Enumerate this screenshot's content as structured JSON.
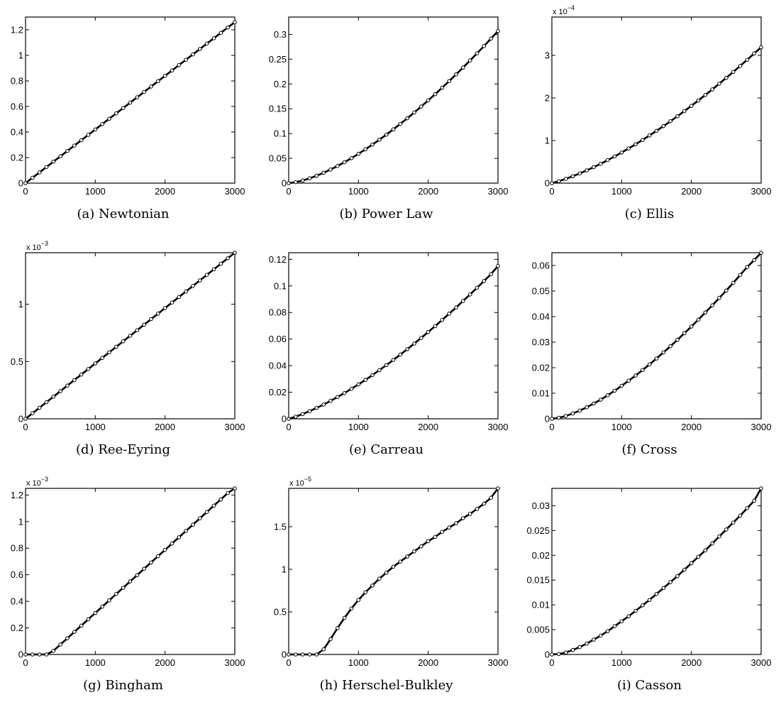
{
  "chart_data": [
    {
      "type": "line",
      "caption": "(a)  Newtonian",
      "xlim": [
        0,
        3000
      ],
      "ylim": [
        0,
        1.3
      ],
      "xticks": [
        0,
        1000,
        2000,
        3000
      ],
      "xtick_labels": [
        "0",
        "1000",
        "2000",
        "3000"
      ],
      "yticks": [
        0,
        0.2,
        0.4,
        0.6,
        0.8,
        1.0,
        1.2
      ],
      "ytick_labels": [
        "0",
        "0.2",
        "0.4",
        "0.6",
        "0.8",
        "1",
        "1.2"
      ],
      "y_multiplier": null,
      "series": [
        {
          "x": [
            0,
            100,
            200,
            300,
            400,
            500,
            600,
            700,
            800,
            900,
            1000,
            1100,
            1200,
            1300,
            1400,
            1500,
            1600,
            1700,
            1800,
            1900,
            2000,
            2100,
            2200,
            2300,
            2400,
            2500,
            2600,
            2700,
            2800,
            2900,
            3000
          ],
          "y": [
            0,
            0.042,
            0.084,
            0.126,
            0.168,
            0.21,
            0.252,
            0.294,
            0.336,
            0.378,
            0.42,
            0.462,
            0.504,
            0.546,
            0.588,
            0.63,
            0.672,
            0.714,
            0.756,
            0.798,
            0.84,
            0.882,
            0.924,
            0.966,
            1.008,
            1.05,
            1.092,
            1.134,
            1.176,
            1.218,
            1.26
          ]
        }
      ]
    },
    {
      "type": "line",
      "caption": "(b)  Power Law",
      "xlim": [
        0,
        3000
      ],
      "ylim": [
        0,
        0.335
      ],
      "xticks": [
        0,
        1000,
        2000,
        3000
      ],
      "xtick_labels": [
        "0",
        "1000",
        "2000",
        "3000"
      ],
      "yticks": [
        0,
        0.05,
        0.1,
        0.15,
        0.2,
        0.25,
        0.3
      ],
      "ytick_labels": [
        "0",
        "0.05",
        "0.1",
        "0.15",
        "0.2",
        "0.25",
        "0.3"
      ],
      "y_multiplier": null,
      "series": [
        {
          "x": [
            0,
            100,
            200,
            300,
            400,
            500,
            600,
            700,
            800,
            900,
            1000,
            1100,
            1200,
            1300,
            1400,
            1500,
            1600,
            1700,
            1800,
            1900,
            2000,
            2100,
            2200,
            2300,
            2400,
            2500,
            2600,
            2700,
            2800,
            2900,
            3000
          ],
          "y": [
            0,
            0.0019,
            0.0053,
            0.0097,
            0.0149,
            0.0209,
            0.0274,
            0.0346,
            0.0422,
            0.0504,
            0.0591,
            0.0682,
            0.0777,
            0.0876,
            0.0978,
            0.1085,
            0.1195,
            0.1308,
            0.1425,
            0.1546,
            0.1669,
            0.1795,
            0.1925,
            0.2058,
            0.2194,
            0.2332,
            0.2474,
            0.2618,
            0.2765,
            0.2915,
            0.3067
          ]
        }
      ]
    },
    {
      "type": "line",
      "caption": "(c)  Ellis",
      "xlim": [
        0,
        3000
      ],
      "ylim": [
        0,
        3.9
      ],
      "xticks": [
        0,
        1000,
        2000,
        3000
      ],
      "xtick_labels": [
        "0",
        "1000",
        "2000",
        "3000"
      ],
      "yticks": [
        0,
        1,
        2,
        3
      ],
      "ytick_labels": [
        "0",
        "1",
        "2",
        "3"
      ],
      "y_multiplier": {
        "base": "x 10",
        "exp": "−4"
      },
      "series": [
        {
          "x": [
            0,
            100,
            200,
            300,
            400,
            500,
            600,
            700,
            800,
            900,
            1000,
            1100,
            1200,
            1300,
            1400,
            1500,
            1600,
            1700,
            1800,
            1900,
            2000,
            2100,
            2200,
            2300,
            2400,
            2500,
            2600,
            2700,
            2800,
            2900,
            3000
          ],
          "y": [
            0,
            0.046,
            0.101,
            0.162,
            0.228,
            0.3,
            0.375,
            0.455,
            0.539,
            0.627,
            0.718,
            0.814,
            0.912,
            1.014,
            1.119,
            1.228,
            1.339,
            1.454,
            1.571,
            1.692,
            1.815,
            1.941,
            2.07,
            2.201,
            2.335,
            2.472,
            2.611,
            2.753,
            2.897,
            3.044,
            3.19
          ]
        }
      ]
    },
    {
      "type": "line",
      "caption": "(d)  Ree-Eyring",
      "xlim": [
        0,
        3000
      ],
      "ylim": [
        0,
        1.45
      ],
      "xticks": [
        0,
        1000,
        2000,
        3000
      ],
      "xtick_labels": [
        "0",
        "1000",
        "2000",
        "3000"
      ],
      "yticks": [
        0,
        0.5,
        1
      ],
      "ytick_labels": [
        "0",
        "0.5",
        "1"
      ],
      "y_multiplier": {
        "base": "x 10",
        "exp": "−3"
      },
      "series": [
        {
          "x": [
            0,
            100,
            200,
            300,
            400,
            500,
            600,
            700,
            800,
            900,
            1000,
            1100,
            1200,
            1300,
            1400,
            1500,
            1600,
            1700,
            1800,
            1900,
            2000,
            2100,
            2200,
            2300,
            2400,
            2500,
            2600,
            2700,
            2800,
            2900,
            3000
          ],
          "y": [
            0,
            0.0483,
            0.0967,
            0.145,
            0.1933,
            0.2417,
            0.29,
            0.3383,
            0.3867,
            0.435,
            0.4833,
            0.5317,
            0.58,
            0.6283,
            0.6767,
            0.725,
            0.7733,
            0.8217,
            0.87,
            0.9183,
            0.9667,
            1.015,
            1.0633,
            1.1117,
            1.16,
            1.2083,
            1.2567,
            1.305,
            1.3533,
            1.4017,
            1.45
          ]
        }
      ]
    },
    {
      "type": "line",
      "caption": "(e)  Carreau",
      "xlim": [
        0,
        3000
      ],
      "ylim": [
        0,
        0.125
      ],
      "xticks": [
        0,
        1000,
        2000,
        3000
      ],
      "xtick_labels": [
        "0",
        "1000",
        "2000",
        "3000"
      ],
      "yticks": [
        0,
        0.02,
        0.04,
        0.06,
        0.08,
        0.1,
        0.12
      ],
      "ytick_labels": [
        "0",
        "0.02",
        "0.04",
        "0.06",
        "0.08",
        "0.1",
        "0.12"
      ],
      "y_multiplier": null,
      "series": [
        {
          "x": [
            0,
            100,
            200,
            300,
            400,
            500,
            600,
            700,
            800,
            900,
            1000,
            1100,
            1200,
            1300,
            1400,
            1500,
            1600,
            1700,
            1800,
            1900,
            2000,
            2100,
            2200,
            2300,
            2400,
            2500,
            2600,
            2700,
            2800,
            2900,
            3000
          ],
          "y": [
            0,
            0.0016,
            0.0036,
            0.0058,
            0.0082,
            0.0107,
            0.0135,
            0.0164,
            0.0194,
            0.0226,
            0.0259,
            0.0293,
            0.0329,
            0.0366,
            0.0404,
            0.0443,
            0.0483,
            0.0524,
            0.0566,
            0.0609,
            0.0653,
            0.0698,
            0.0744,
            0.0791,
            0.0838,
            0.0887,
            0.0936,
            0.0986,
            0.1037,
            0.1089,
            0.115
          ]
        }
      ]
    },
    {
      "type": "line",
      "caption": "(f)  Cross",
      "xlim": [
        0,
        3000
      ],
      "ylim": [
        0,
        0.065
      ],
      "xticks": [
        0,
        1000,
        2000,
        3000
      ],
      "xtick_labels": [
        "0",
        "1000",
        "2000",
        "3000"
      ],
      "yticks": [
        0,
        0.01,
        0.02,
        0.03,
        0.04,
        0.05,
        0.06
      ],
      "ytick_labels": [
        "0",
        "0.01",
        "0.02",
        "0.03",
        "0.04",
        "0.05",
        "0.06"
      ],
      "y_multiplier": null,
      "series": [
        {
          "x": [
            0,
            100,
            200,
            300,
            400,
            500,
            600,
            700,
            800,
            900,
            1000,
            1100,
            1200,
            1300,
            1400,
            1500,
            1600,
            1700,
            1800,
            1900,
            2000,
            2100,
            2200,
            2300,
            2400,
            2500,
            2600,
            2700,
            2800,
            2900,
            3000
          ],
          "y": [
            0,
            0.0004,
            0.0011,
            0.0021,
            0.0032,
            0.0045,
            0.006,
            0.0075,
            0.0092,
            0.011,
            0.0129,
            0.0149,
            0.0169,
            0.0191,
            0.0213,
            0.0236,
            0.026,
            0.0284,
            0.0309,
            0.0335,
            0.0361,
            0.0388,
            0.0416,
            0.0444,
            0.0473,
            0.0502,
            0.0532,
            0.0563,
            0.0594,
            0.0621,
            0.065
          ]
        }
      ]
    },
    {
      "type": "line",
      "caption": "(g)  Bingham",
      "xlim": [
        0,
        3000
      ],
      "ylim": [
        0,
        1.25
      ],
      "xticks": [
        0,
        1000,
        2000,
        3000
      ],
      "xtick_labels": [
        "0",
        "1000",
        "2000",
        "3000"
      ],
      "yticks": [
        0,
        0.2,
        0.4,
        0.6,
        0.8,
        1.0,
        1.2
      ],
      "ytick_labels": [
        "0",
        "0.2",
        "0.4",
        "0.6",
        "0.8",
        "1",
        "1.2"
      ],
      "y_multiplier": {
        "base": "x 10",
        "exp": "−3"
      },
      "series": [
        {
          "x": [
            0,
            100,
            200,
            300,
            400,
            500,
            600,
            700,
            800,
            900,
            1000,
            1100,
            1200,
            1300,
            1400,
            1500,
            1600,
            1700,
            1800,
            1900,
            2000,
            2100,
            2200,
            2300,
            2400,
            2500,
            2600,
            2700,
            2800,
            2900,
            3000
          ],
          "y": [
            0,
            0,
            0,
            0,
            0.027,
            0.075,
            0.122,
            0.17,
            0.217,
            0.265,
            0.312,
            0.36,
            0.407,
            0.455,
            0.502,
            0.55,
            0.597,
            0.645,
            0.692,
            0.74,
            0.787,
            0.835,
            0.882,
            0.93,
            0.977,
            1.025,
            1.072,
            1.12,
            1.167,
            1.215,
            1.25
          ]
        }
      ]
    },
    {
      "type": "line",
      "caption": "(h)  Herschel-Bulkley",
      "xlim": [
        0,
        3000
      ],
      "ylim": [
        0,
        1.95
      ],
      "xticks": [
        0,
        1000,
        2000,
        3000
      ],
      "xtick_labels": [
        "0",
        "1000",
        "2000",
        "3000"
      ],
      "yticks": [
        0,
        0.5,
        1,
        1.5
      ],
      "ytick_labels": [
        "0",
        "0.5",
        "1",
        "1.5"
      ],
      "y_multiplier": {
        "base": "x 10",
        "exp": "−5"
      },
      "series": [
        {
          "x": [
            0,
            100,
            200,
            300,
            400,
            500,
            600,
            700,
            800,
            900,
            1000,
            1100,
            1200,
            1300,
            1400,
            1500,
            1600,
            1700,
            1800,
            1900,
            2000,
            2100,
            2200,
            2300,
            2400,
            2500,
            2600,
            2700,
            2800,
            2900,
            3000
          ],
          "y": [
            0,
            0,
            0,
            0,
            0,
            0.06,
            0.18,
            0.31,
            0.43,
            0.54,
            0.64,
            0.73,
            0.81,
            0.89,
            0.96,
            1.03,
            1.09,
            1.15,
            1.21,
            1.27,
            1.33,
            1.38,
            1.44,
            1.49,
            1.54,
            1.6,
            1.65,
            1.71,
            1.77,
            1.84,
            1.95
          ]
        }
      ]
    },
    {
      "type": "line",
      "caption": "(i)  Casson",
      "xlim": [
        0,
        3000
      ],
      "ylim": [
        0,
        0.0335
      ],
      "xticks": [
        0,
        1000,
        2000,
        3000
      ],
      "xtick_labels": [
        "0",
        "1000",
        "2000",
        "3000"
      ],
      "yticks": [
        0,
        0.005,
        0.01,
        0.015,
        0.02,
        0.025,
        0.03
      ],
      "ytick_labels": [
        "0",
        "0.005",
        "0.01",
        "0.015",
        "0.02",
        "0.025",
        "0.03"
      ],
      "y_multiplier": null,
      "series": [
        {
          "x": [
            0,
            100,
            200,
            300,
            400,
            500,
            600,
            700,
            800,
            900,
            1000,
            1100,
            1200,
            1300,
            1400,
            1500,
            1600,
            1700,
            1800,
            1900,
            2000,
            2100,
            2200,
            2300,
            2400,
            2500,
            2600,
            2700,
            2800,
            2900,
            3000
          ],
          "y": [
            0,
            0.0001,
            0.0004,
            0.0009,
            0.0015,
            0.0022,
            0.003,
            0.0038,
            0.0047,
            0.0057,
            0.0067,
            0.0077,
            0.0088,
            0.0099,
            0.011,
            0.0122,
            0.0134,
            0.0146,
            0.0158,
            0.0171,
            0.0184,
            0.0197,
            0.021,
            0.0224,
            0.0238,
            0.0252,
            0.0266,
            0.028,
            0.0295,
            0.031,
            0.0335
          ]
        }
      ]
    }
  ]
}
